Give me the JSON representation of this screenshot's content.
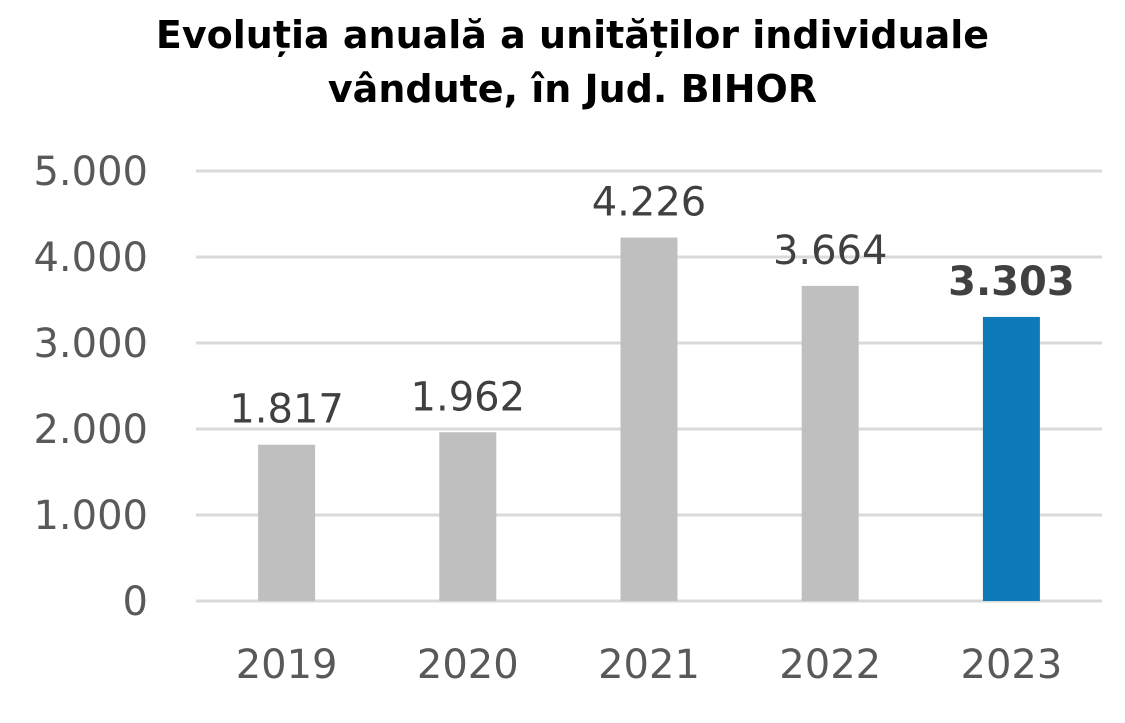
{
  "chart_data": {
    "type": "bar",
    "title_lines": [
      "Evoluția anuală a unităților individuale",
      "vândute, în Jud. BIHOR"
    ],
    "xlabel": "",
    "ylabel": "",
    "categories": [
      "2019",
      "2020",
      "2021",
      "2022",
      "2023"
    ],
    "values": [
      1817,
      1962,
      4226,
      3664,
      3303
    ],
    "data_labels": [
      "1.817",
      "1.962",
      "4.226",
      "3.664",
      "3.303"
    ],
    "highlight_index": 4,
    "ylim": [
      0,
      5000
    ],
    "y_ticks": [
      0,
      1000,
      2000,
      3000,
      4000,
      5000
    ],
    "y_tick_labels": [
      "0",
      "1.000",
      "2.000",
      "3.000",
      "4.000",
      "5.000"
    ],
    "grid": true,
    "legend": "none",
    "colors": {
      "bar": "#bfbfbf",
      "highlight_bar": "#0f7ab8",
      "grid": "#d9d9d9"
    }
  }
}
